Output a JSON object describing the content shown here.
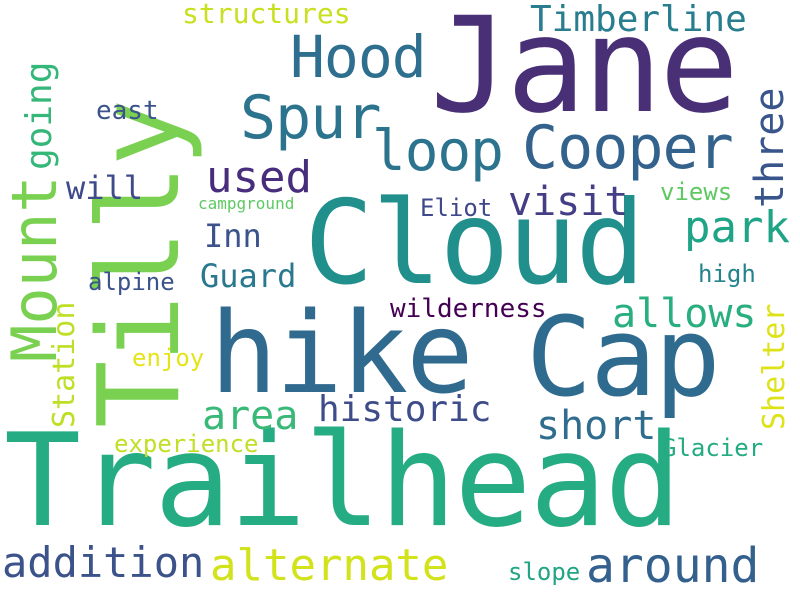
{
  "words": {
    "trailhead": {
      "text": "Trailhead",
      "color": "#26AC82"
    },
    "jane": {
      "text": "Jane",
      "color": "#482F76"
    },
    "cloud": {
      "text": "Cloud",
      "color": "#21908C"
    },
    "hike": {
      "text": "hike",
      "color": "#306A8E"
    },
    "cap": {
      "text": "Cap",
      "color": "#2F6B8E"
    },
    "tilly": {
      "text": "Tilly",
      "color": "#7AD151"
    },
    "mount": {
      "text": "Mount",
      "color": "#7AD151"
    },
    "hood": {
      "text": "Hood",
      "color": "#2E6E8E"
    },
    "spur": {
      "text": "Spur",
      "color": "#2C738E"
    },
    "cooper": {
      "text": "Cooper",
      "color": "#33628D"
    },
    "loop": {
      "text": "loop",
      "color": "#2C738E"
    },
    "timberline": {
      "text": "Timberline",
      "color": "#287D8E"
    },
    "structures": {
      "text": "structures",
      "color": "#C8E020"
    },
    "going": {
      "text": "going",
      "color": "#35B779"
    },
    "used": {
      "text": "used",
      "color": "#472D7B"
    },
    "three": {
      "text": "three",
      "color": "#39568C"
    },
    "east": {
      "text": "east",
      "color": "#3B528B"
    },
    "will": {
      "text": "will",
      "color": "#3E4A89"
    },
    "visit": {
      "text": "visit",
      "color": "#433E85"
    },
    "campground": {
      "text": "campground",
      "color": "#5EC962"
    },
    "eliot": {
      "text": "Eliot",
      "color": "#3F4889"
    },
    "views": {
      "text": "views",
      "color": "#5EC962"
    },
    "park": {
      "text": "park",
      "color": "#20A486"
    },
    "inn": {
      "text": "Inn",
      "color": "#3B528B"
    },
    "guard": {
      "text": "Guard",
      "color": "#2A788E"
    },
    "high": {
      "text": "high",
      "color": "#25838E"
    },
    "alpine": {
      "text": "alpine",
      "color": "#3B528B"
    },
    "station": {
      "text": "Station",
      "color": "#BDDF26"
    },
    "allows": {
      "text": "allows",
      "color": "#29AF7F"
    },
    "wilderness": {
      "text": "wilderness",
      "color": "#440154"
    },
    "shelter": {
      "text": "Shelter",
      "color": "#DDE318"
    },
    "enjoy": {
      "text": "enjoy",
      "color": "#E5E419"
    },
    "area": {
      "text": "area",
      "color": "#38B977"
    },
    "historic": {
      "text": "historic",
      "color": "#3E4C8A"
    },
    "short": {
      "text": "short",
      "color": "#2F6C8E"
    },
    "experience": {
      "text": "experience",
      "color": "#C0DF25"
    },
    "glacier": {
      "text": "Glacier",
      "color": "#25AB82"
    },
    "addition": {
      "text": "addition",
      "color": "#3B528B"
    },
    "alternate": {
      "text": "alternate",
      "color": "#D2E21B"
    },
    "around": {
      "text": "around",
      "color": "#34608D"
    },
    "slope": {
      "text": "slope",
      "color": "#21A585"
    }
  }
}
